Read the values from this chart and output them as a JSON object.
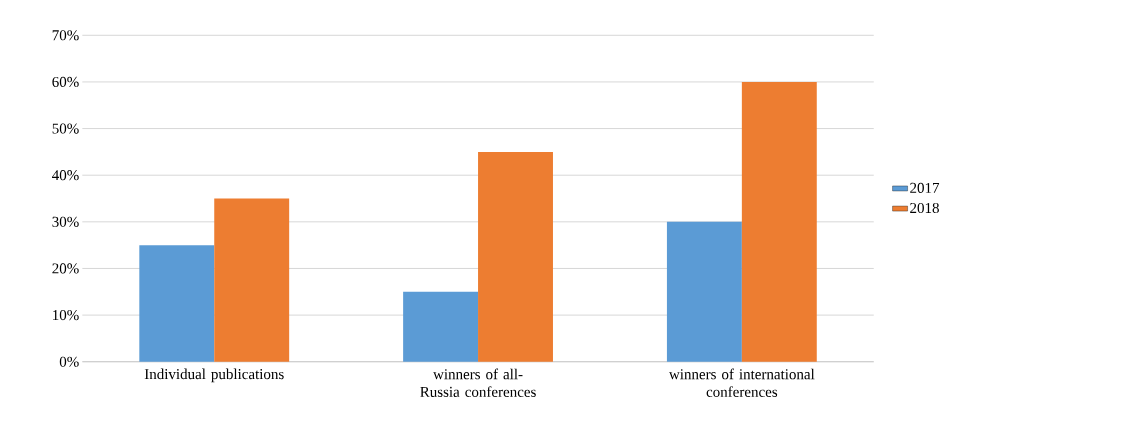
{
  "chart_data": {
    "type": "bar",
    "categories": [
      "Individual publications",
      "winners of all-Russia conferences",
      "winners of international conferences"
    ],
    "series": [
      {
        "name": "2017",
        "color": "#5b9bd5",
        "values": [
          25,
          15,
          30
        ]
      },
      {
        "name": "2018",
        "color": "#ed7d31",
        "values": [
          35,
          45,
          60
        ]
      }
    ],
    "ylim": [
      0,
      70
    ],
    "yticks": [
      {
        "value": 0,
        "label": "0%"
      },
      {
        "value": 10,
        "label": "10%"
      },
      {
        "value": 20,
        "label": "20%"
      },
      {
        "value": 30,
        "label": "30%"
      },
      {
        "value": 40,
        "label": "40%"
      },
      {
        "value": 50,
        "label": "50%"
      },
      {
        "value": 60,
        "label": "60%"
      },
      {
        "value": 70,
        "label": "70%"
      }
    ],
    "grid": "y",
    "legend": "right"
  }
}
